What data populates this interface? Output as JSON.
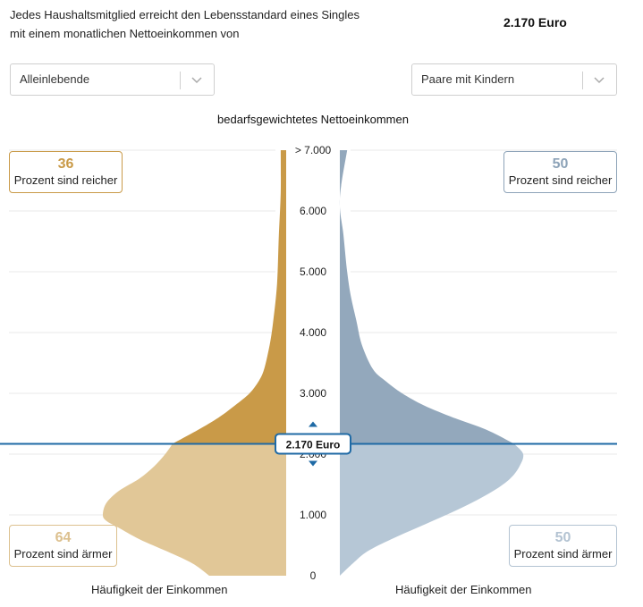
{
  "intro": {
    "line1": "Jedes Haushaltsmitglied erreicht den Lebensstandard eines Singles",
    "line2": "mit einem monatlichen Nettoeinkommen von",
    "amount": "2.170 Euro"
  },
  "selects": {
    "left": {
      "value": "Alleinlebende"
    },
    "right": {
      "value": "Paare mit Kindern"
    }
  },
  "colors": {
    "left_upper": "#c99a48",
    "left_lower": "#e1c797",
    "right_upper": "#93a8bc",
    "right_lower": "#b6c7d6",
    "marker_line": "#1f6aa5",
    "grid": "#e8e8e8"
  },
  "chart_data": {
    "type": "violin",
    "title": "bedarfsgewichtetes Nettoeinkommen",
    "ylabel": "bedarfsgewichtetes Nettoeinkommen",
    "xlabel_left": "Häufigkeit der Einkommen",
    "xlabel_right": "Häufigkeit der Einkommen",
    "ylim": [
      0,
      7000
    ],
    "yticks": [
      0,
      1000,
      2000,
      3000,
      4000,
      5000,
      6000,
      7000
    ],
    "ytick_labels": [
      "0",
      "1.000",
      "2.000",
      "3.000",
      "4.000",
      "5.000",
      "6.000",
      "> 7.000"
    ],
    "marker": {
      "value": 2170,
      "label": "2.170 Euro"
    },
    "series": [
      {
        "name": "Alleinlebende",
        "side": "left",
        "density": [
          [
            0,
            0.42
          ],
          [
            200,
            0.51
          ],
          [
            400,
            0.65
          ],
          [
            600,
            0.8
          ],
          [
            800,
            0.92
          ],
          [
            900,
            0.98
          ],
          [
            1000,
            1.0
          ],
          [
            1200,
            0.98
          ],
          [
            1400,
            0.91
          ],
          [
            1600,
            0.8
          ],
          [
            1800,
            0.72
          ],
          [
            2000,
            0.66
          ],
          [
            2170,
            0.62
          ],
          [
            2400,
            0.48
          ],
          [
            2600,
            0.37
          ],
          [
            2800,
            0.28
          ],
          [
            3000,
            0.2
          ],
          [
            3200,
            0.15
          ],
          [
            3400,
            0.12
          ],
          [
            3800,
            0.09
          ],
          [
            4200,
            0.07
          ],
          [
            4800,
            0.05
          ],
          [
            5600,
            0.04
          ],
          [
            6300,
            0.03
          ],
          [
            7000,
            0.03
          ]
        ],
        "upper": {
          "percent": "36",
          "label": "Prozent sind reicher"
        },
        "lower": {
          "percent": "64",
          "label": "Prozent sind ärmer"
        }
      },
      {
        "name": "Paare mit Kindern",
        "side": "right",
        "density": [
          [
            0,
            0.0
          ],
          [
            200,
            0.07
          ],
          [
            400,
            0.15
          ],
          [
            600,
            0.28
          ],
          [
            800,
            0.43
          ],
          [
            1000,
            0.58
          ],
          [
            1200,
            0.72
          ],
          [
            1400,
            0.84
          ],
          [
            1600,
            0.93
          ],
          [
            1800,
            0.98
          ],
          [
            2000,
            1.0
          ],
          [
            2170,
            0.95
          ],
          [
            2400,
            0.8
          ],
          [
            2600,
            0.62
          ],
          [
            2800,
            0.46
          ],
          [
            3000,
            0.34
          ],
          [
            3200,
            0.25
          ],
          [
            3400,
            0.18
          ],
          [
            3800,
            0.12
          ],
          [
            4200,
            0.09
          ],
          [
            4600,
            0.06
          ],
          [
            5000,
            0.04
          ],
          [
            5600,
            0.02
          ],
          [
            6200,
            0.0
          ],
          [
            7000,
            0.04
          ]
        ],
        "upper": {
          "percent": "50",
          "label": "Prozent sind reicher"
        },
        "lower": {
          "percent": "50",
          "label": "Prozent sind ärmer"
        }
      }
    ]
  }
}
